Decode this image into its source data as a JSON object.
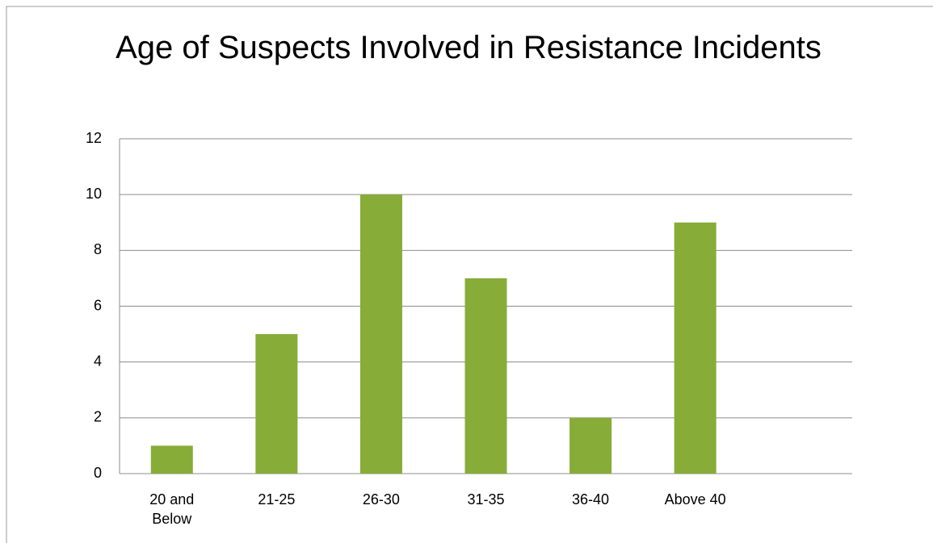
{
  "chart_data": {
    "type": "bar",
    "title": "Age of Suspects Involved in Resistance Incidents",
    "categories": [
      "20 and Below",
      "21-25",
      "26-30",
      "31-35",
      "36-40",
      "Above 40",
      null
    ],
    "values": [
      1,
      5,
      10,
      7,
      2,
      9,
      null
    ],
    "color": "#87ac37",
    "ylim": [
      0,
      12
    ],
    "yticks": [
      0,
      2,
      4,
      6,
      8,
      10,
      12
    ],
    "grid": true
  }
}
